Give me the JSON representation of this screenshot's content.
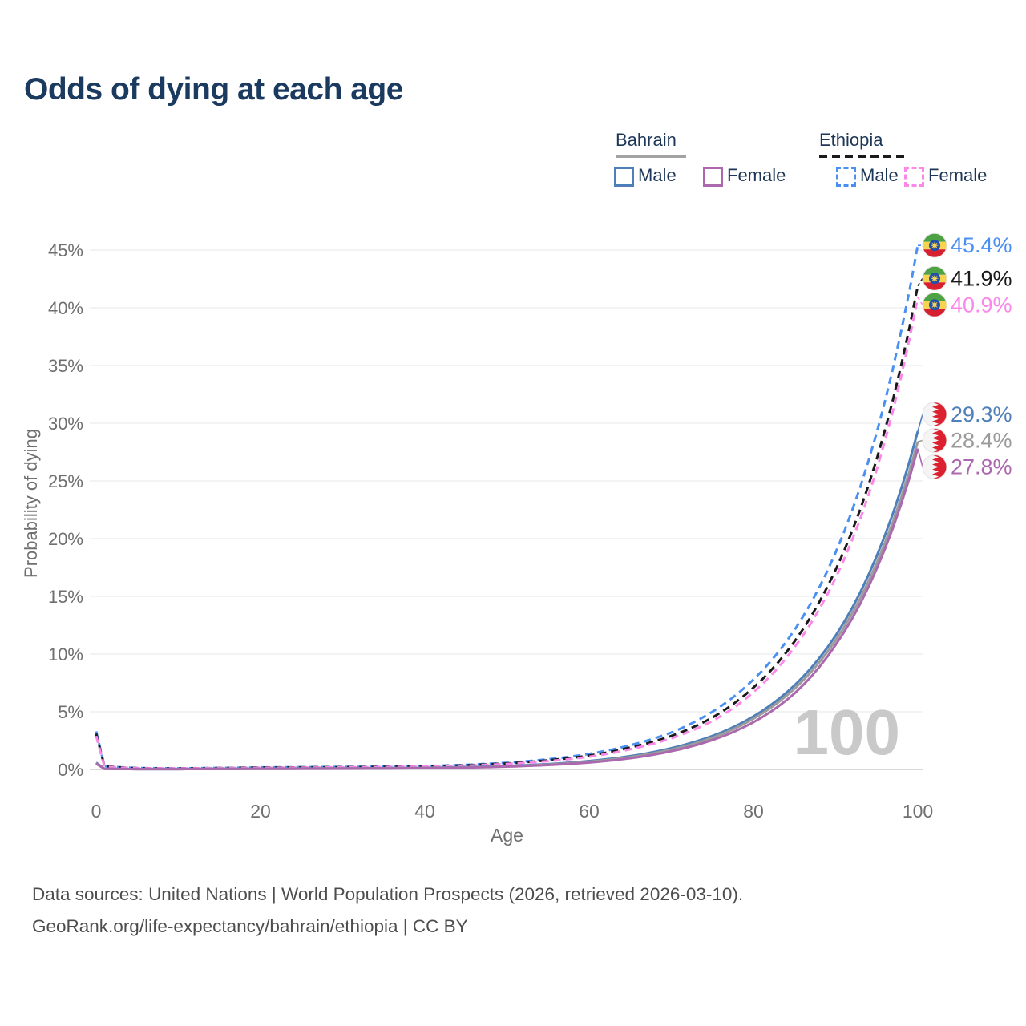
{
  "title": "Odds of dying at each age",
  "watermark": "100",
  "legend": {
    "groups": [
      {
        "label": "Bahrain",
        "line_style": "solid",
        "underline_color": "#a3a3a3",
        "items": [
          {
            "label": "Male",
            "color": "#4f7fba",
            "dashed": false
          },
          {
            "label": "Female",
            "color": "#ab68ae",
            "dashed": false
          }
        ]
      },
      {
        "label": "Ethiopia",
        "line_style": "dashed",
        "underline_color": "#1a1a1a",
        "items": [
          {
            "label": "Male",
            "color": "#4a8ff2",
            "dashed": true
          },
          {
            "label": "Female",
            "color": "#fb87e9",
            "dashed": true
          }
        ]
      }
    ]
  },
  "chart_data": {
    "type": "line",
    "title": "Odds of dying at each age",
    "xlabel": "Age",
    "ylabel": "Probability of dying",
    "xlim": [
      0,
      100
    ],
    "ylim": [
      0,
      45.5
    ],
    "grid": "horizontal",
    "x_ticks": [
      0,
      20,
      40,
      60,
      80,
      100
    ],
    "y_ticks": [
      0,
      5,
      10,
      15,
      20,
      25,
      30,
      35,
      40,
      45
    ],
    "y_tick_labels": [
      "0%",
      "5%",
      "10%",
      "15%",
      "20%",
      "25%",
      "30%",
      "35%",
      "40%",
      "45%"
    ],
    "x": [
      0,
      1,
      5,
      10,
      15,
      20,
      25,
      30,
      35,
      40,
      45,
      50,
      55,
      60,
      65,
      70,
      75,
      80,
      85,
      90,
      95,
      100
    ],
    "series": [
      {
        "id": "ethiopia-male",
        "name": "Ethiopia Male",
        "country": "Ethiopia",
        "sex": "male",
        "color": "#4a8ff2",
        "dashed": true,
        "flag": "ethiopia",
        "end_label": "45.4%",
        "values": [
          3.3,
          0.3,
          0.12,
          0.1,
          0.13,
          0.18,
          0.2,
          0.22,
          0.25,
          0.3,
          0.4,
          0.58,
          0.88,
          1.35,
          2.1,
          3.2,
          5.0,
          7.8,
          12.1,
          18.8,
          29.2,
          45.4
        ]
      },
      {
        "id": "ethiopia-total",
        "name": "Ethiopia",
        "country": "Ethiopia",
        "sex": "both",
        "color": "#1a1a1a",
        "dashed": true,
        "flag": "ethiopia",
        "end_label": "41.9%",
        "values": [
          3.1,
          0.28,
          0.11,
          0.09,
          0.12,
          0.16,
          0.18,
          0.2,
          0.23,
          0.27,
          0.36,
          0.52,
          0.79,
          1.2,
          1.9,
          2.9,
          4.5,
          7.1,
          11.1,
          17.3,
          26.9,
          41.9
        ]
      },
      {
        "id": "ethiopia-female",
        "name": "Ethiopia Female",
        "country": "Ethiopia",
        "sex": "female",
        "color": "#fb87e9",
        "dashed": true,
        "flag": "ethiopia",
        "end_label": "40.9%",
        "values": [
          2.9,
          0.26,
          0.1,
          0.09,
          0.11,
          0.14,
          0.16,
          0.18,
          0.21,
          0.25,
          0.33,
          0.48,
          0.72,
          1.1,
          1.75,
          2.7,
          4.2,
          6.7,
          10.6,
          16.6,
          26.0,
          40.9
        ]
      },
      {
        "id": "bahrain-male",
        "name": "Bahrain Male",
        "country": "Bahrain",
        "sex": "male",
        "color": "#4f7fba",
        "dashed": false,
        "flag": "bahrain",
        "end_label": "29.3%",
        "values": [
          0.6,
          0.06,
          0.03,
          0.03,
          0.05,
          0.07,
          0.08,
          0.09,
          0.11,
          0.14,
          0.2,
          0.3,
          0.46,
          0.73,
          1.15,
          1.85,
          2.9,
          4.6,
          7.3,
          11.6,
          18.5,
          29.3
        ]
      },
      {
        "id": "bahrain-total",
        "name": "Bahrain",
        "country": "Bahrain",
        "sex": "both",
        "color": "#9b9b9b",
        "dashed": false,
        "flag": "bahrain",
        "end_label": "28.4%",
        "values": [
          0.55,
          0.06,
          0.03,
          0.03,
          0.05,
          0.06,
          0.07,
          0.08,
          0.1,
          0.13,
          0.18,
          0.27,
          0.42,
          0.67,
          1.07,
          1.72,
          2.75,
          4.4,
          7.0,
          11.2,
          17.9,
          28.4
        ]
      },
      {
        "id": "bahrain-female",
        "name": "Bahrain Female",
        "country": "Bahrain",
        "sex": "female",
        "color": "#ab68ae",
        "dashed": false,
        "flag": "bahrain",
        "end_label": "27.8%",
        "values": [
          0.5,
          0.05,
          0.03,
          0.03,
          0.04,
          0.05,
          0.06,
          0.07,
          0.09,
          0.11,
          0.16,
          0.24,
          0.38,
          0.6,
          0.97,
          1.58,
          2.55,
          4.1,
          6.6,
          10.8,
          17.4,
          27.8
        ]
      }
    ]
  },
  "colors": {
    "grid": "#ececec",
    "zero_line": "#d9d9d9",
    "tick_text": "#6f6f6f",
    "title_text": "#1b3a5f",
    "watermark": "#c9c9c9",
    "footer_text": "#4d4d4d"
  },
  "footer": {
    "line1": "Data sources: United Nations | World Population Prospects (2026, retrieved 2026-03-10).",
    "line2": "GeoRank.org/life-expectancy/bahrain/ethiopia | CC BY"
  }
}
